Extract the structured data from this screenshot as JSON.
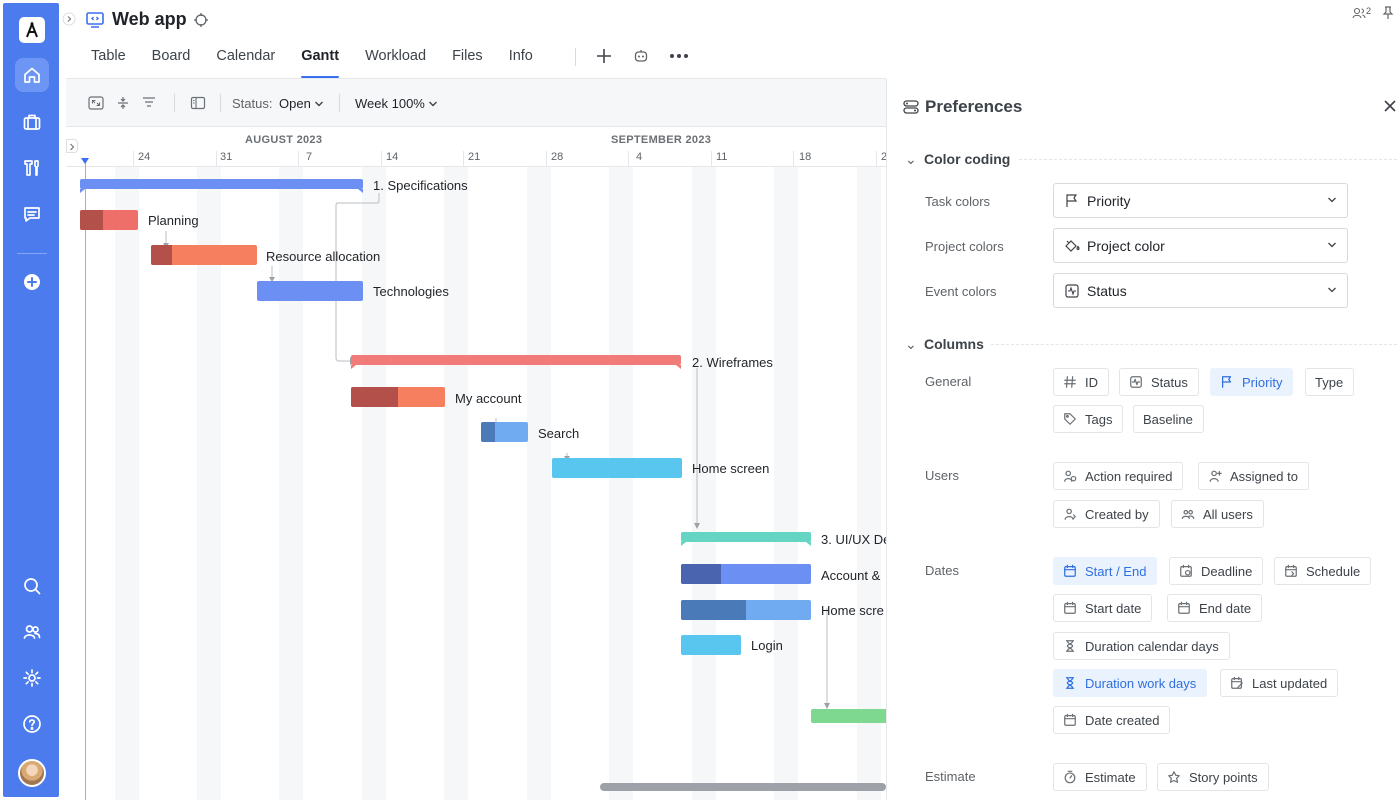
{
  "app": {
    "title": "Web app",
    "watchers_count": "2"
  },
  "tabs": [
    "Table",
    "Board",
    "Calendar",
    "Gantt",
    "Workload",
    "Files",
    "Info"
  ],
  "active_tab": "Gantt",
  "toolbar": {
    "status_label": "Status:",
    "status_value": "Open",
    "zoom_value": "Week 100%"
  },
  "timeline": {
    "months": [
      "AUGUST 2023",
      "SEPTEMBER 2023"
    ],
    "weeks": [
      "24",
      "31",
      "7",
      "14",
      "21",
      "28",
      "4",
      "11",
      "18",
      "2"
    ]
  },
  "tasks": [
    {
      "label": "1. Specifications",
      "type": "group",
      "color": "#6b8ff3"
    },
    {
      "label": "Planning",
      "type": "task",
      "color": "#ee6f6a",
      "progress_color": "#b4504a",
      "progress": 0.4
    },
    {
      "label": "Resource allocation",
      "type": "task",
      "color": "#f57f5e",
      "progress_color": "#b4504a",
      "progress": 0.2
    },
    {
      "label": "Technologies",
      "type": "task",
      "color": "#6b8ff3",
      "progress": 0
    },
    {
      "label": "2. Wireframes",
      "type": "group",
      "color": "#f07b78"
    },
    {
      "label": "My account",
      "type": "task",
      "color": "#f57f5e",
      "progress_color": "#b4504a",
      "progress": 0.5
    },
    {
      "label": "Search",
      "type": "task",
      "color": "#70aaf0",
      "progress_color": "#4a7bb8",
      "progress": 0.3
    },
    {
      "label": "Home screen",
      "type": "task",
      "color": "#58c6ee",
      "progress": 0
    },
    {
      "label": "3. UI/UX De",
      "type": "group",
      "color": "#64d4c3"
    },
    {
      "label": "Account &",
      "type": "task",
      "color": "#6b8ff3",
      "progress_color": "#4a64b0",
      "progress": 0.3
    },
    {
      "label": "Home scre",
      "type": "task",
      "color": "#70aaf0",
      "progress_color": "#4a7bb8",
      "progress": 0.5
    },
    {
      "label": "Login",
      "type": "task",
      "color": "#58c6ee",
      "progress": 0
    },
    {
      "label": "",
      "type": "task",
      "color": "#7ed88f",
      "progress": 0
    }
  ],
  "preferences": {
    "title": "Preferences",
    "color_coding": {
      "heading": "Color coding",
      "task_colors": {
        "label": "Task colors",
        "value": "Priority"
      },
      "project_colors": {
        "label": "Project colors",
        "value": "Project color"
      },
      "event_colors": {
        "label": "Event colors",
        "value": "Status"
      }
    },
    "columns": {
      "heading": "Columns",
      "general": {
        "label": "General",
        "chips": [
          {
            "text": "ID",
            "icon": "hash-icon",
            "on": false
          },
          {
            "text": "Status",
            "icon": "status-icon",
            "on": false
          },
          {
            "text": "Priority",
            "icon": "flag-icon",
            "on": true
          },
          {
            "text": "Type",
            "icon": "",
            "on": false
          },
          {
            "text": "Tags",
            "icon": "tag-icon",
            "on": false
          },
          {
            "text": "Baseline",
            "icon": "",
            "on": false
          }
        ]
      },
      "users": {
        "label": "Users",
        "chips": [
          {
            "text": "Action required",
            "icon": "user-alert-icon",
            "on": false
          },
          {
            "text": "Assigned to",
            "icon": "user-icon",
            "on": false
          },
          {
            "text": "Created by",
            "icon": "user-plus-icon",
            "on": false
          },
          {
            "text": "All users",
            "icon": "users-icon",
            "on": false
          }
        ]
      },
      "dates": {
        "label": "Dates",
        "chips": [
          {
            "text": "Start / End",
            "icon": "calendar-icon",
            "on": true
          },
          {
            "text": "Deadline",
            "icon": "calendar-clock-icon",
            "on": false
          },
          {
            "text": "Schedule",
            "icon": "calendar-repeat-icon",
            "on": false
          },
          {
            "text": "Start date",
            "icon": "calendar-icon",
            "on": false
          },
          {
            "text": "End date",
            "icon": "calendar-icon",
            "on": false
          },
          {
            "text": "Duration calendar days",
            "icon": "hourglass-icon",
            "on": false
          },
          {
            "text": "Duration work days",
            "icon": "hourglass-icon",
            "on": true
          },
          {
            "text": "Last updated",
            "icon": "calendar-edit-icon",
            "on": false
          },
          {
            "text": "Date created",
            "icon": "calendar-plus-icon",
            "on": false
          }
        ]
      },
      "estimate": {
        "label": "Estimate",
        "chips": [
          {
            "text": "Estimate",
            "icon": "timer-icon",
            "on": false
          },
          {
            "text": "Story points",
            "icon": "points-icon",
            "on": false
          }
        ]
      }
    }
  }
}
